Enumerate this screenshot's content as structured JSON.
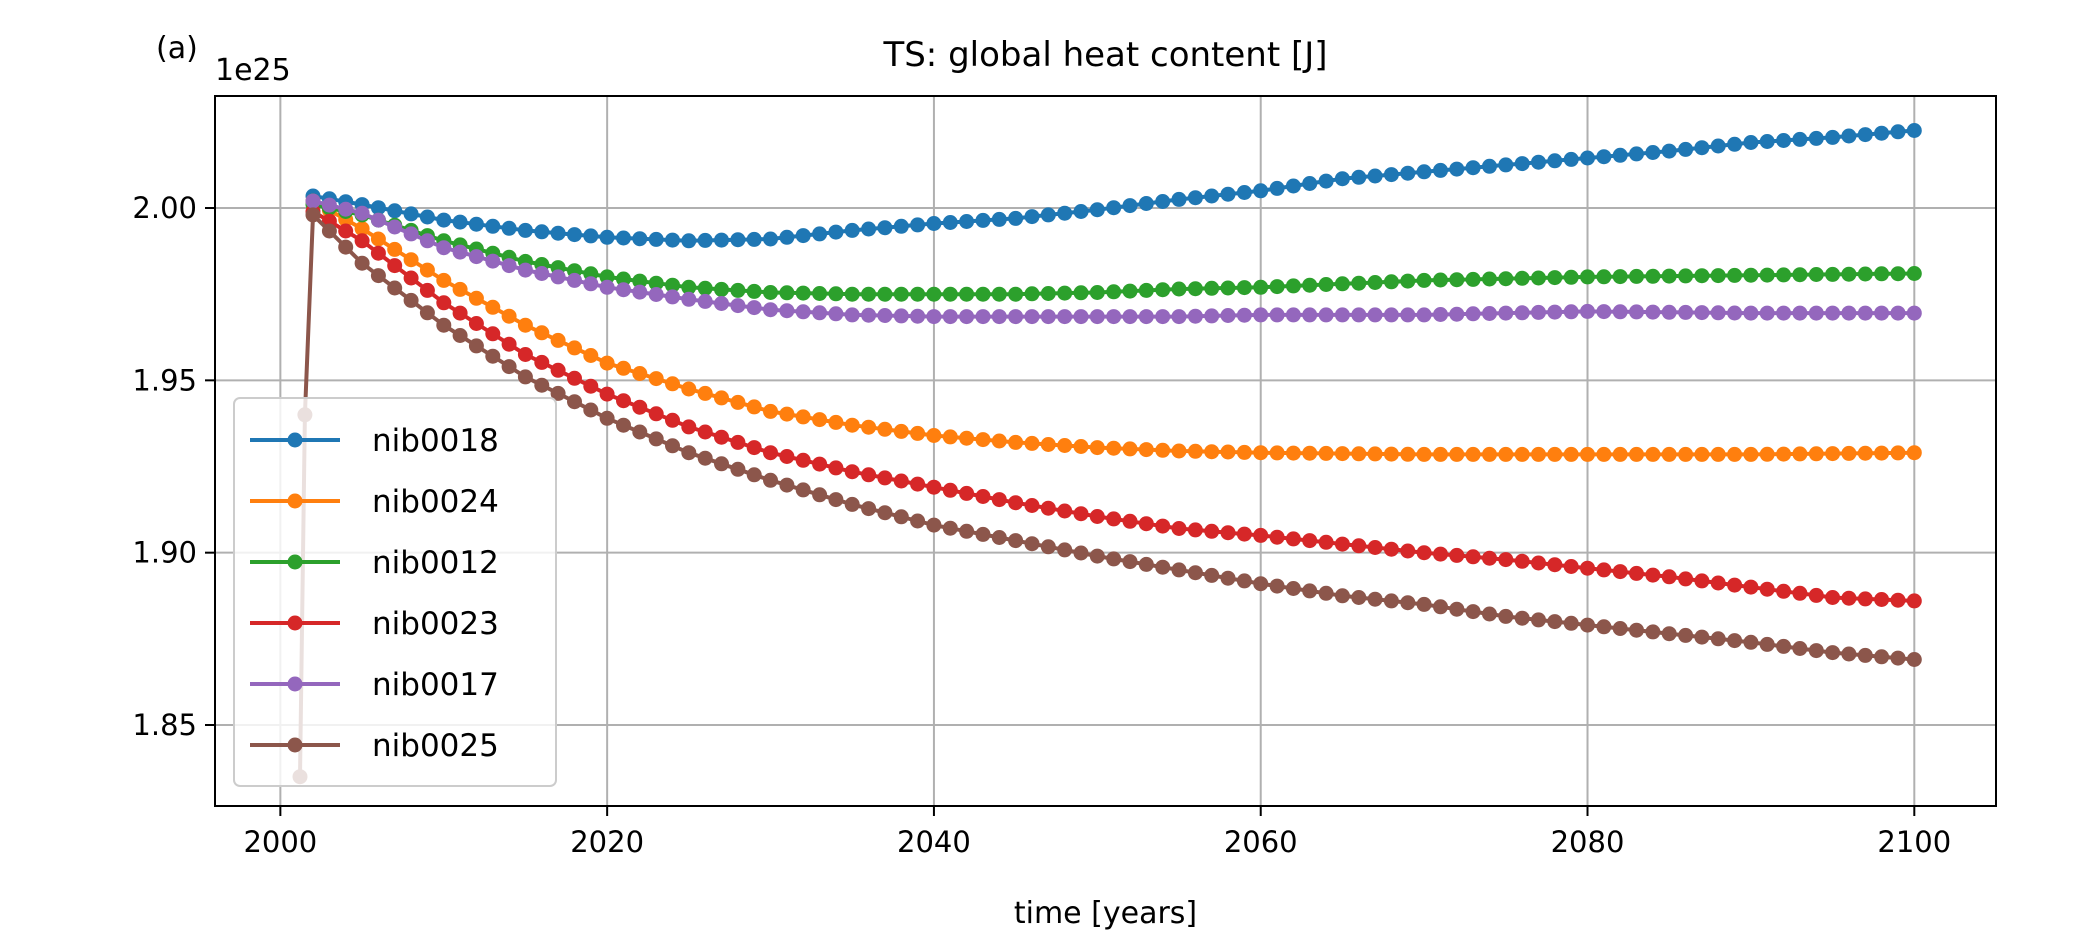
{
  "chart_data": {
    "type": "line",
    "panel_label": "(a)",
    "title": "TS: global heat content [J]",
    "xlabel": "time [years]",
    "ylabel": "",
    "y_offset_label": "1e25",
    "xlim": [
      1996,
      2105
    ],
    "ylim": [
      1.8265,
      2.0325
    ],
    "xticks": [
      2000,
      2020,
      2040,
      2060,
      2080,
      2100
    ],
    "yticks": [
      1.85,
      1.9,
      1.95,
      2.0
    ],
    "ytick_labels": [
      "1.85",
      "1.90",
      "1.95",
      "2.00"
    ],
    "grid": true,
    "legend_position": "lower-left",
    "x_start": 2002,
    "x_end": 2100,
    "series": [
      {
        "name": "nib0018",
        "color": "#1f77b4",
        "keyframes": [
          [
            2002,
            2.0035
          ],
          [
            2005,
            2.001
          ],
          [
            2010,
            1.9965
          ],
          [
            2015,
            1.9935
          ],
          [
            2020,
            1.9915
          ],
          [
            2025,
            1.9905
          ],
          [
            2030,
            1.991
          ],
          [
            2035,
            1.9935
          ],
          [
            2040,
            1.9955
          ],
          [
            2045,
            1.997
          ],
          [
            2050,
            1.9995
          ],
          [
            2055,
            2.0025
          ],
          [
            2060,
            2.005
          ],
          [
            2065,
            2.0085
          ],
          [
            2070,
            2.0105
          ],
          [
            2075,
            2.0125
          ],
          [
            2080,
            2.0145
          ],
          [
            2085,
            2.0165
          ],
          [
            2090,
            2.019
          ],
          [
            2095,
            2.0205
          ],
          [
            2100,
            2.0225
          ]
        ]
      },
      {
        "name": "nib0024",
        "color": "#ff7f0e",
        "keyframes": [
          [
            2002,
            2.002
          ],
          [
            2005,
            1.994
          ],
          [
            2010,
            1.979
          ],
          [
            2015,
            1.966
          ],
          [
            2020,
            1.955
          ],
          [
            2025,
            1.9475
          ],
          [
            2030,
            1.941
          ],
          [
            2035,
            1.937
          ],
          [
            2040,
            1.934
          ],
          [
            2045,
            1.932
          ],
          [
            2050,
            1.9305
          ],
          [
            2055,
            1.9295
          ],
          [
            2060,
            1.929
          ],
          [
            2070,
            1.9285
          ],
          [
            2080,
            1.9285
          ],
          [
            2090,
            1.9285
          ],
          [
            2100,
            1.929
          ]
        ]
      },
      {
        "name": "nib0012",
        "color": "#2ca02c",
        "keyframes": [
          [
            2002,
            2.001
          ],
          [
            2005,
            1.998
          ],
          [
            2010,
            1.9905
          ],
          [
            2015,
            1.9845
          ],
          [
            2020,
            1.98
          ],
          [
            2025,
            1.977
          ],
          [
            2030,
            1.9755
          ],
          [
            2035,
            1.975
          ],
          [
            2040,
            1.975
          ],
          [
            2045,
            1.975
          ],
          [
            2050,
            1.9755
          ],
          [
            2055,
            1.9765
          ],
          [
            2060,
            1.977
          ],
          [
            2070,
            1.979
          ],
          [
            2080,
            1.98
          ],
          [
            2090,
            1.9805
          ],
          [
            2100,
            1.981
          ]
        ]
      },
      {
        "name": "nib0023",
        "color": "#d62728",
        "keyframes": [
          [
            2002,
            1.999
          ],
          [
            2005,
            1.9905
          ],
          [
            2010,
            1.9725
          ],
          [
            2015,
            1.9575
          ],
          [
            2020,
            1.946
          ],
          [
            2025,
            1.9365
          ],
          [
            2030,
            1.929
          ],
          [
            2035,
            1.9235
          ],
          [
            2040,
            1.919
          ],
          [
            2045,
            1.9145
          ],
          [
            2050,
            1.9105
          ],
          [
            2055,
            1.907
          ],
          [
            2060,
            1.905
          ],
          [
            2065,
            1.9025
          ],
          [
            2070,
            1.9
          ],
          [
            2075,
            1.898
          ],
          [
            2080,
            1.8955
          ],
          [
            2085,
            1.893
          ],
          [
            2090,
            1.89
          ],
          [
            2095,
            1.887
          ],
          [
            2100,
            1.886
          ]
        ]
      },
      {
        "name": "nib0017",
        "color": "#9467bd",
        "keyframes": [
          [
            2002,
            2.002
          ],
          [
            2005,
            1.9985
          ],
          [
            2010,
            1.9885
          ],
          [
            2015,
            1.982
          ],
          [
            2020,
            1.977
          ],
          [
            2025,
            1.9735
          ],
          [
            2030,
            1.9705
          ],
          [
            2035,
            1.969
          ],
          [
            2040,
            1.9685
          ],
          [
            2045,
            1.9685
          ],
          [
            2050,
            1.9685
          ],
          [
            2055,
            1.9685
          ],
          [
            2060,
            1.969
          ],
          [
            2070,
            1.969
          ],
          [
            2080,
            1.97
          ],
          [
            2090,
            1.9695
          ],
          [
            2100,
            1.9695
          ]
        ]
      },
      {
        "name": "nib0025",
        "color": "#8c564b",
        "keyframes": [
          [
            2001.2,
            1.835
          ],
          [
            2001.5,
            1.94
          ],
          [
            2002,
            1.998
          ],
          [
            2005,
            1.984
          ],
          [
            2010,
            1.966
          ],
          [
            2015,
            1.951
          ],
          [
            2020,
            1.939
          ],
          [
            2025,
            1.929
          ],
          [
            2030,
            1.921
          ],
          [
            2035,
            1.914
          ],
          [
            2040,
            1.908
          ],
          [
            2045,
            1.9035
          ],
          [
            2050,
            1.899
          ],
          [
            2055,
            1.895
          ],
          [
            2060,
            1.891
          ],
          [
            2065,
            1.8875
          ],
          [
            2070,
            1.885
          ],
          [
            2075,
            1.8815
          ],
          [
            2080,
            1.879
          ],
          [
            2085,
            1.8765
          ],
          [
            2090,
            1.874
          ],
          [
            2095,
            1.871
          ],
          [
            2100,
            1.869
          ]
        ]
      }
    ]
  }
}
